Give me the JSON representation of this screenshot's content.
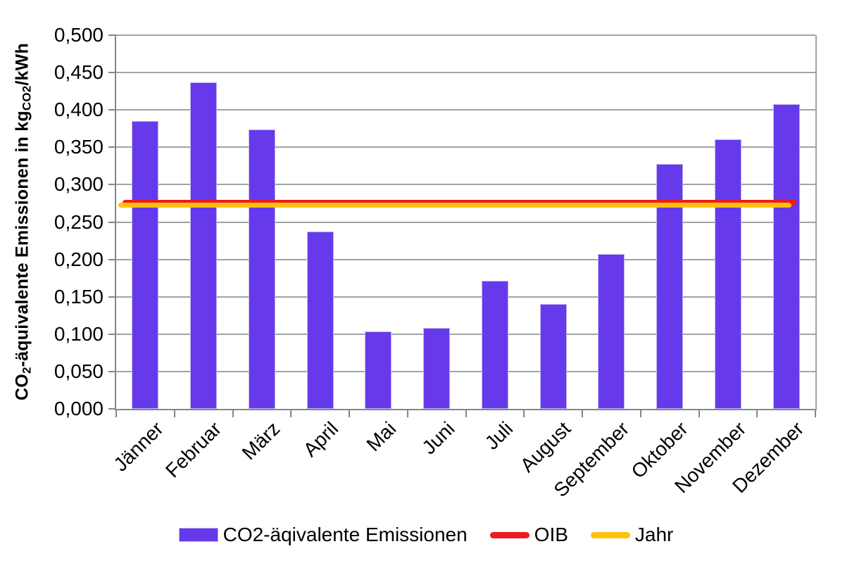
{
  "chart_data": {
    "type": "bar",
    "title": "",
    "categories": [
      "Jänner",
      "Februar",
      "März",
      "April",
      "Mai",
      "Juni",
      "Juli",
      "August",
      "September",
      "Oktober",
      "November",
      "Dezember"
    ],
    "series": [
      {
        "name": "CO2-äqivalente Emissionen",
        "type": "bar",
        "color": "#6639ea",
        "values": [
          0.385,
          0.437,
          0.374,
          0.237,
          0.104,
          0.108,
          0.171,
          0.14,
          0.207,
          0.328,
          0.361,
          0.408
        ]
      },
      {
        "name": "OIB",
        "type": "line",
        "color": "#ec1c1c",
        "value": 0.276
      },
      {
        "name": "Jahr",
        "type": "line",
        "color": "#ffc010",
        "value": 0.274
      }
    ],
    "ylabel_parts": {
      "pre": "CO",
      "sub1": "2",
      "mid": "-äquivalente Emissionen in kg",
      "sub2": "CO2",
      "post": "/kWh"
    },
    "y_ticks": [
      {
        "label": "0,000",
        "value": 0.0
      },
      {
        "label": "0,050",
        "value": 0.05
      },
      {
        "label": "0,100",
        "value": 0.1
      },
      {
        "label": "0,150",
        "value": 0.15
      },
      {
        "label": "0,200",
        "value": 0.2
      },
      {
        "label": "0,250",
        "value": 0.25
      },
      {
        "label": "0,300",
        "value": 0.3
      },
      {
        "label": "0,350",
        "value": 0.35
      },
      {
        "label": "0,400",
        "value": 0.4
      },
      {
        "label": "0,450",
        "value": 0.45
      },
      {
        "label": "0,500",
        "value": 0.5
      }
    ],
    "ylim": [
      0,
      0.5
    ],
    "grid": true,
    "legend_position": "bottom",
    "colors": {
      "background": "#ffffff",
      "gridline": "#9aa4ad",
      "axis": "#7d8890",
      "text": "#000000"
    }
  }
}
